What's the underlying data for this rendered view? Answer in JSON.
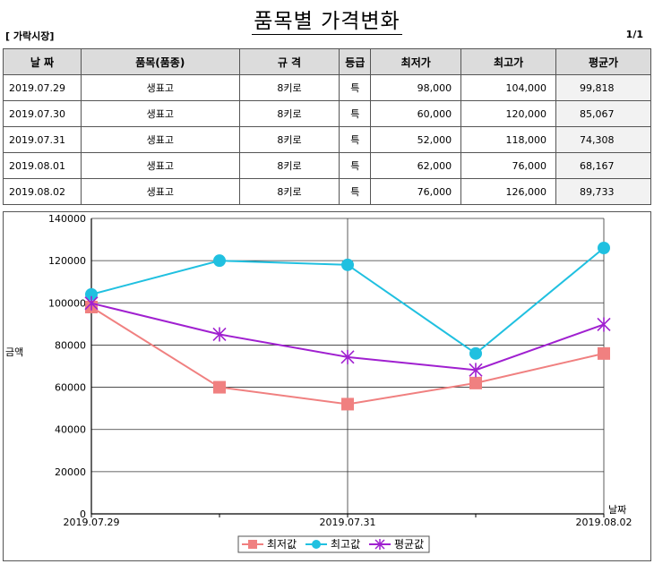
{
  "header": {
    "title": "품목별 가격변화",
    "category": "[ 가락시장]",
    "page": "1/1"
  },
  "table": {
    "columns": [
      "날 짜",
      "품목(품종)",
      "규 격",
      "등급",
      "최저가",
      "최고가",
      "평균가"
    ],
    "rows": [
      {
        "date": "2019.07.29",
        "item": "생표고",
        "spec": "8키로",
        "grade": "특",
        "min": "98,000",
        "max": "104,000",
        "avg": "99,818"
      },
      {
        "date": "2019.07.30",
        "item": "생표고",
        "spec": "8키로",
        "grade": "특",
        "min": "60,000",
        "max": "120,000",
        "avg": "85,067"
      },
      {
        "date": "2019.07.31",
        "item": "생표고",
        "spec": "8키로",
        "grade": "특",
        "min": "52,000",
        "max": "118,000",
        "avg": "74,308"
      },
      {
        "date": "2019.08.01",
        "item": "생표고",
        "spec": "8키로",
        "grade": "특",
        "min": "62,000",
        "max": "76,000",
        "avg": "68,167"
      },
      {
        "date": "2019.08.02",
        "item": "생표고",
        "spec": "8키로",
        "grade": "특",
        "min": "76,000",
        "max": "126,000",
        "avg": "89,733"
      }
    ]
  },
  "chart_data": {
    "type": "line",
    "title": "",
    "xlabel": "날짜",
    "ylabel": "금액",
    "x": [
      "2019.07.29",
      "2019.07.30",
      "2019.07.31",
      "2019.08.01",
      "2019.08.02"
    ],
    "x_tick_labels": [
      "2019.07.29",
      "",
      "2019.07.31",
      "",
      "2019.08.02"
    ],
    "ylim": [
      0,
      140000
    ],
    "yticks": [
      0,
      20000,
      40000,
      60000,
      80000,
      100000,
      120000,
      140000
    ],
    "grid": true,
    "legend": "bottom",
    "series": [
      {
        "name": "최저값",
        "values": [
          98000,
          60000,
          52000,
          62000,
          76000
        ],
        "color": "#f08080",
        "marker": "square"
      },
      {
        "name": "최고값",
        "values": [
          104000,
          120000,
          118000,
          76000,
          126000
        ],
        "color": "#20c0e0",
        "marker": "circle"
      },
      {
        "name": "평균값",
        "values": [
          99818,
          85067,
          74308,
          68167,
          89733
        ],
        "color": "#a020d0",
        "marker": "star"
      }
    ]
  }
}
